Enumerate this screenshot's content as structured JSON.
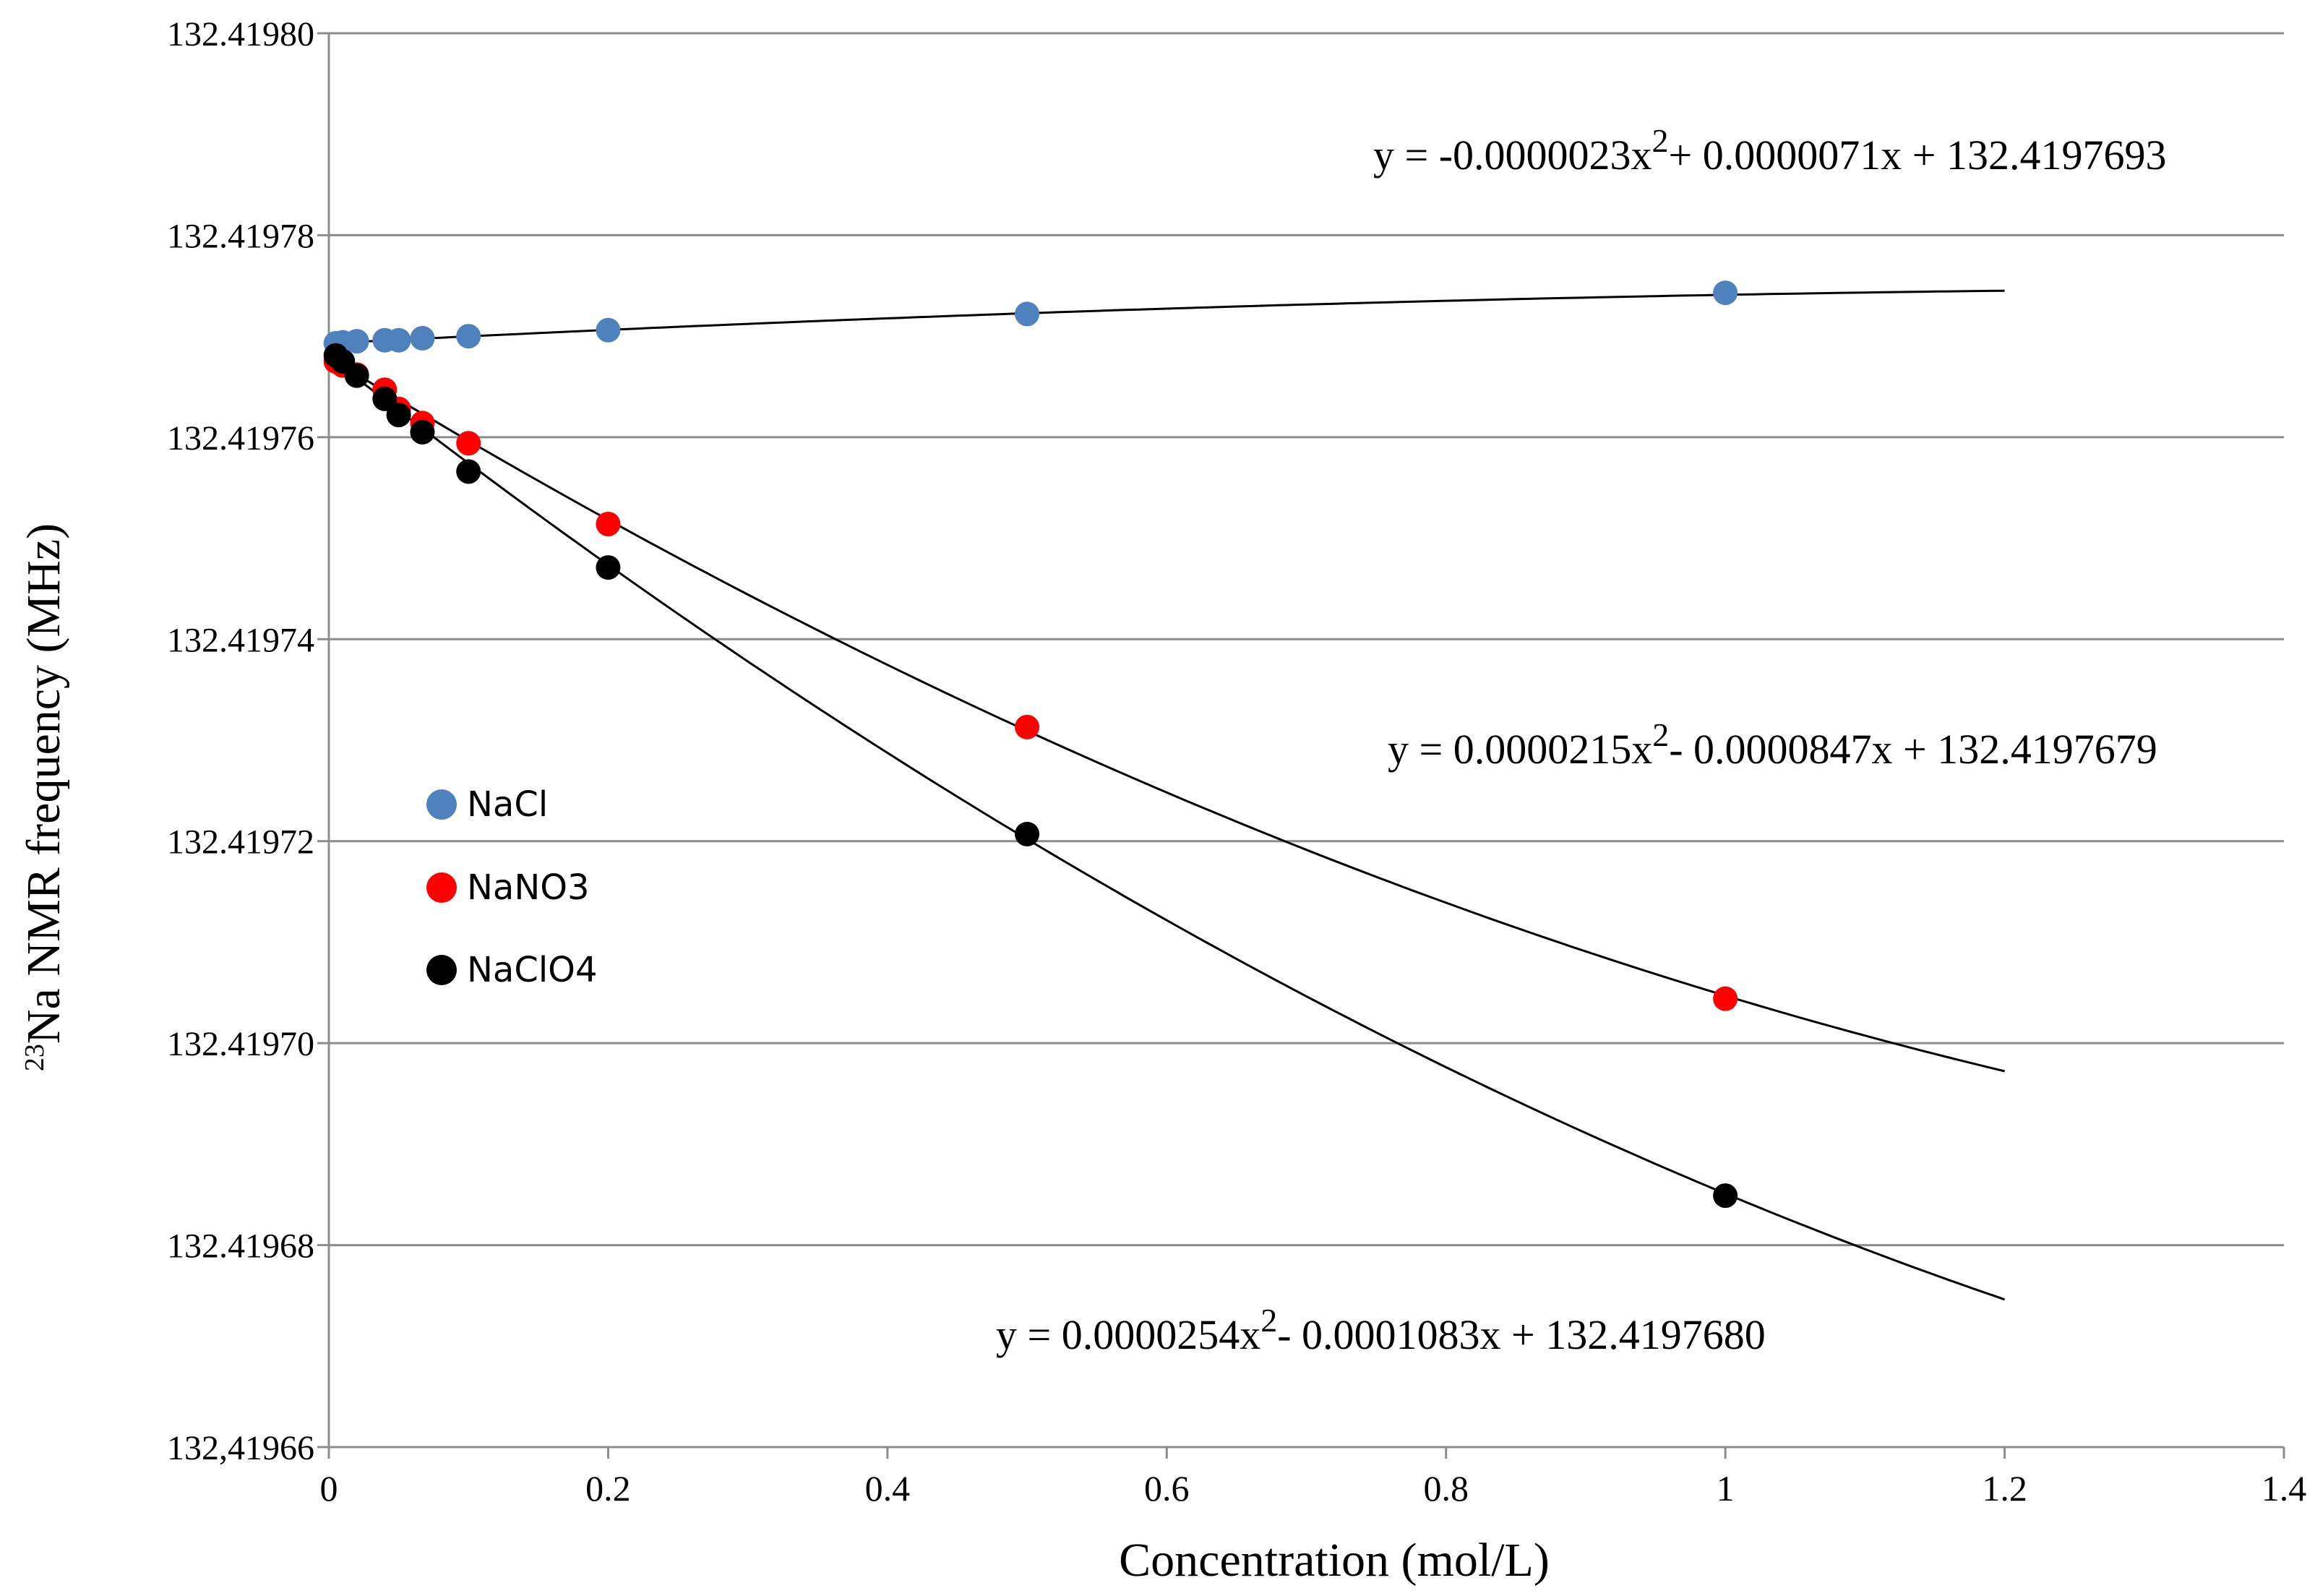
{
  "chart_data": {
    "type": "scatter",
    "xlabel": "Concentration (mol/L)",
    "ylabel_sup": "23",
    "ylabel": "Na NMR frequency (MHz)",
    "xlim": [
      0,
      1.4
    ],
    "ylim": [
      132.41966,
      132.4198
    ],
    "grid": "horizontal",
    "x_ticks": [
      "0",
      "0.2",
      "0.4",
      "0.6",
      "0.8",
      "1",
      "1.2",
      "1.4"
    ],
    "x_tick_values": [
      0,
      0.2,
      0.4,
      0.6,
      0.8,
      1.0,
      1.2,
      1.4
    ],
    "y_ticks": [
      "132,41966",
      "132.41968",
      "132.41970",
      "132.41972",
      "132.41974",
      "132.41976",
      "132.41978",
      "132.41980"
    ],
    "y_tick_values": [
      132.41966,
      132.41968,
      132.4197,
      132.41972,
      132.41974,
      132.41976,
      132.41978,
      132.4198
    ],
    "legend_position": "left-middle",
    "series": [
      {
        "name": "NaCl",
        "color": "#4F81BD",
        "x": [
          0.005,
          0.01,
          0.02,
          0.04,
          0.05,
          0.067,
          0.1,
          0.2,
          0.5,
          1.0
        ],
        "y": [
          132.4197693,
          132.4197694,
          132.4197695,
          132.4197696,
          132.4197696,
          132.4197698,
          132.41977,
          132.4197706,
          132.4197722,
          132.4197743
        ],
        "fit": [
          -2.3e-06,
          7.1e-06,
          132.4197693
        ],
        "equation_parts": [
          "y = -0.0000023x",
          "2",
          "+ 0.0000071x + 132.4197693"
        ]
      },
      {
        "name": "NaNO3",
        "color": "#FF0000",
        "x": [
          0.005,
          0.01,
          0.02,
          0.04,
          0.05,
          0.067,
          0.1,
          0.2,
          0.5,
          1.0
        ],
        "y": [
          132.4197675,
          132.4197671,
          132.4197662,
          132.4197647,
          132.4197628,
          132.4197614,
          132.4197594,
          132.4197514,
          132.4197313,
          132.4197044
        ],
        "fit": [
          2.15e-05,
          -8.47e-05,
          132.4197679
        ],
        "equation_parts": [
          "y = 0.0000215x",
          "2",
          "- 0.0000847x + 132.4197679"
        ]
      },
      {
        "name": "NaClO4",
        "color": "#000000",
        "x": [
          0.005,
          0.01,
          0.02,
          0.04,
          0.05,
          0.067,
          0.1,
          0.2,
          0.5,
          1.0
        ],
        "y": [
          132.4197681,
          132.4197675,
          132.4197661,
          132.4197638,
          132.4197622,
          132.4197605,
          132.4197566,
          132.4197471,
          132.4197207,
          132.4196849
        ],
        "fit": [
          2.54e-05,
          -0.0001083,
          132.419768
        ],
        "equation_parts": [
          "y = 0.0000254x",
          "2",
          "- 0.0001083x + 132.4197680"
        ]
      }
    ]
  }
}
